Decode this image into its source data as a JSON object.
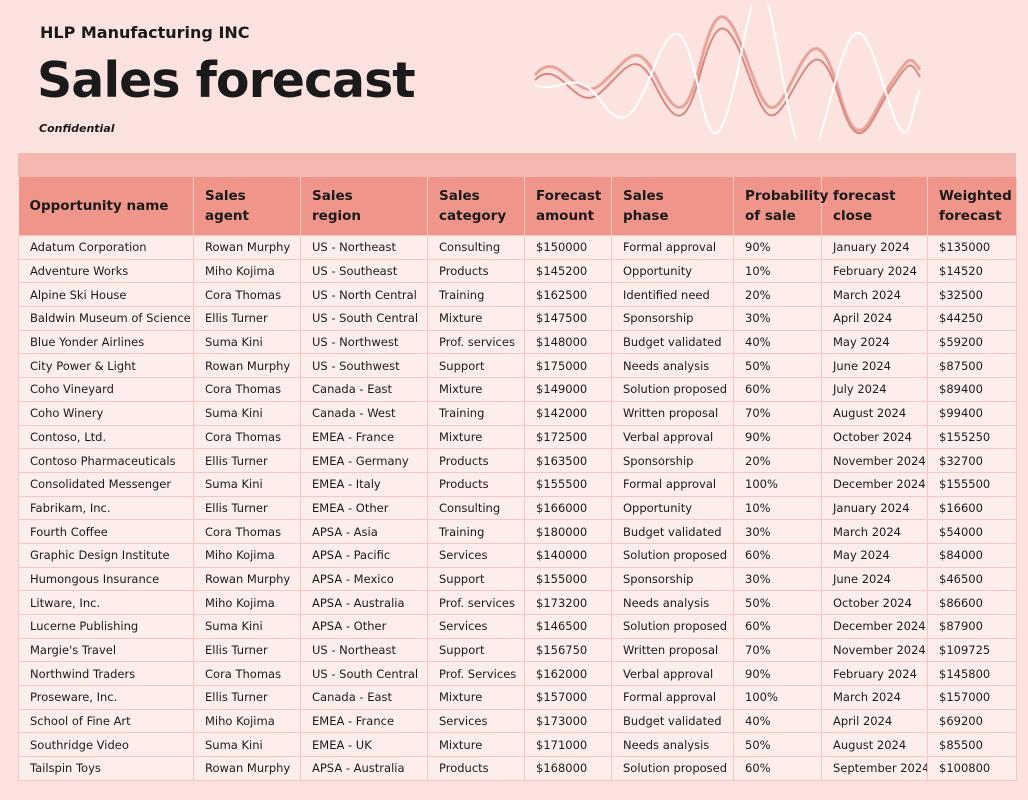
{
  "header": {
    "company": "HLP Manufacturing INC",
    "title": "Sales forecast",
    "note": "Confidential"
  },
  "table": {
    "columns": [
      [
        "Opportunity name"
      ],
      [
        "Sales",
        "agent"
      ],
      [
        "Sales",
        "region"
      ],
      [
        "Sales",
        "category"
      ],
      [
        "Forecast",
        "amount"
      ],
      [
        "Sales",
        "phase"
      ],
      [
        "Probability",
        "of sale"
      ],
      [
        "forecast",
        "close"
      ],
      [
        "Weighted",
        "forecast"
      ]
    ],
    "rows": [
      [
        "Adatum Corporation",
        "Rowan Murphy",
        "US - Northeast",
        "Consulting",
        "$150000",
        "Formal approval",
        "90%",
        "January 2024",
        "$135000"
      ],
      [
        "Adventure Works",
        "Miho Kojima",
        "US - Southeast",
        "Products",
        "$145200",
        "Opportunity",
        "10%",
        "February 2024",
        "$14520"
      ],
      [
        "Alpine Ski House",
        "Cora Thomas",
        "US - North Central",
        "Training",
        "$162500",
        "Identified need",
        "20%",
        "March 2024",
        "$32500"
      ],
      [
        "Baldwin Museum of Science",
        "Ellis Turner",
        "US - South Central",
        "Mixture",
        "$147500",
        "Sponsorship",
        "30%",
        "April 2024",
        "$44250"
      ],
      [
        "Blue Yonder Airlines",
        "Suma Kini",
        "US - Northwest",
        "Prof. services",
        "$148000",
        "Budget validated",
        "40%",
        "May 2024",
        "$59200"
      ],
      [
        "City Power & Light",
        "Rowan Murphy",
        "US - Southwest",
        "Support",
        "$175000",
        "Needs analysis",
        "50%",
        "June 2024",
        "$87500"
      ],
      [
        "Coho Vineyard",
        "Cora Thomas",
        "Canada - East",
        "Mixture",
        "$149000",
        "Solution proposed",
        "60%",
        "July 2024",
        "$89400"
      ],
      [
        "Coho Winery",
        "Suma Kini",
        "Canada - West",
        "Training",
        "$142000",
        "Written proposal",
        "70%",
        "August 2024",
        "$99400"
      ],
      [
        "Contoso, Ltd.",
        "Cora Thomas",
        "EMEA - France",
        "Mixture",
        "$172500",
        "Verbal approval",
        "90%",
        "October 2024",
        "$155250"
      ],
      [
        "Contoso Pharmaceuticals",
        "Ellis Turner",
        "EMEA - Germany",
        "Products",
        "$163500",
        "Sponsorship",
        "20%",
        "November 2024",
        "$32700"
      ],
      [
        "Consolidated Messenger",
        "Suma Kini",
        "EMEA - Italy",
        "Products",
        "$155500",
        "Formal approval",
        "100%",
        "December 2024",
        "$155500"
      ],
      [
        "Fabrikam, Inc.",
        "Ellis Turner",
        "EMEA - Other",
        "Consulting",
        "$166000",
        "Opportunity",
        "10%",
        "January 2024",
        "$16600"
      ],
      [
        "Fourth Coffee",
        "Cora Thomas",
        "APSA - Asia",
        "Training",
        "$180000",
        "Budget validated",
        "30%",
        "March 2024",
        "$54000"
      ],
      [
        "Graphic Design Institute",
        "Miho Kojima",
        "APSA - Pacific",
        "Services",
        "$140000",
        "Solution proposed",
        "60%",
        "May 2024",
        "$84000"
      ],
      [
        "Humongous Insurance",
        "Rowan Murphy",
        "APSA - Mexico",
        "Support",
        "$155000",
        "Sponsorship",
        "30%",
        "June 2024",
        "$46500"
      ],
      [
        "Litware, Inc.",
        "Miho Kojima",
        "APSA - Australia",
        "Prof. services",
        "$173200",
        "Needs analysis",
        "50%",
        "October 2024",
        "$86600"
      ],
      [
        "Lucerne Publishing",
        "Suma Kini",
        "APSA - Other",
        "Services",
        "$146500",
        "Solution proposed",
        "60%",
        "December 2024",
        "$87900"
      ],
      [
        "Margie's Travel",
        "Ellis Turner",
        "US - Northeast",
        "Support",
        "$156750",
        "Written proposal",
        "70%",
        "November 2024",
        "$109725"
      ],
      [
        "Northwind Traders",
        "Cora Thomas",
        "US - South Central",
        "Prof. Services",
        "$162000",
        "Verbal approval",
        "90%",
        "February 2024",
        "$145800"
      ],
      [
        "Proseware, Inc.",
        "Ellis Turner",
        "Canada - East",
        "Mixture",
        "$157000",
        "Formal approval",
        "100%",
        "March 2024",
        "$157000"
      ],
      [
        "School of Fine Art",
        "Miho Kojima",
        "EMEA - France",
        "Services",
        "$173000",
        "Budget validated",
        "40%",
        "April 2024",
        "$69200"
      ],
      [
        "Southridge Video",
        "Suma Kini",
        "EMEA - UK",
        "Mixture",
        "$171000",
        "Needs analysis",
        "50%",
        "August 2024",
        "$85500"
      ],
      [
        "Tailspin Toys",
        "Rowan Murphy",
        "APSA - Australia",
        "Products",
        "$168000",
        "Solution proposed",
        "60%",
        "September 2024",
        "$100800"
      ]
    ]
  }
}
